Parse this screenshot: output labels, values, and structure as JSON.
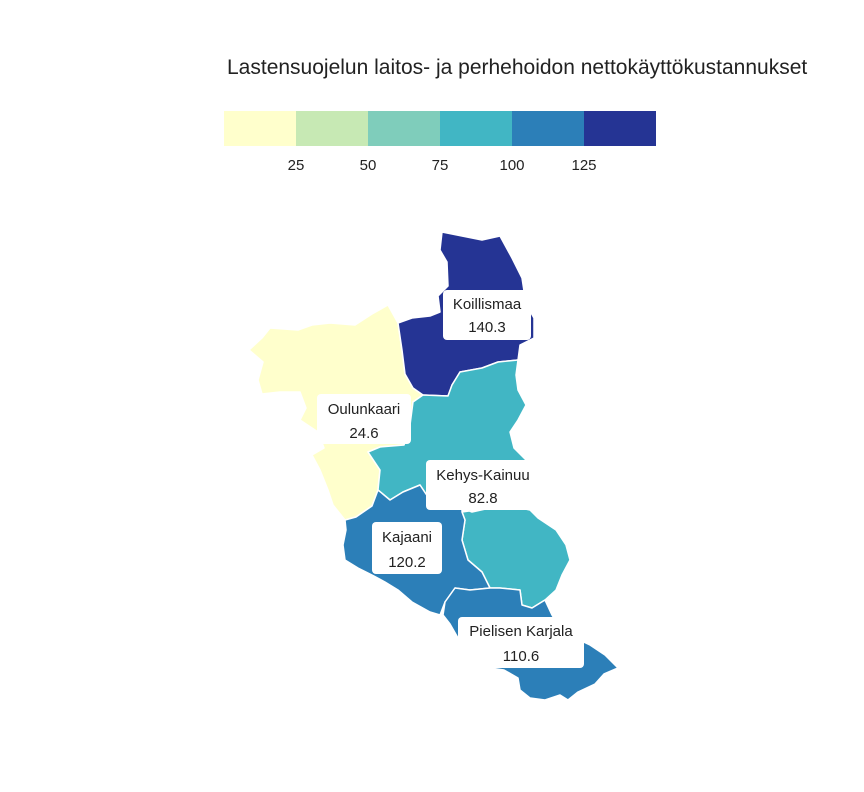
{
  "title": "Lastensuojelun laitos- ja perhehoidon nettokäyttökustannukset",
  "legend": {
    "ticks": [
      "25",
      "50",
      "75",
      "100",
      "125"
    ],
    "colors": [
      "#ffffcc",
      "#c7e9b4",
      "#7fcdbb",
      "#41b6c4",
      "#2c7fb8",
      "#253494"
    ]
  },
  "regions": [
    {
      "name": "Koillismaa",
      "value": "140.3",
      "color": "#253494"
    },
    {
      "name": "Oulunkaari",
      "value": "24.6",
      "color": "#ffffcc"
    },
    {
      "name": "Kehys-Kainuu",
      "value": "82.8",
      "color": "#41b6c4"
    },
    {
      "name": "Kajaani",
      "value": "120.2",
      "color": "#2c7fb8"
    },
    {
      "name": "Pielisen Karjala",
      "value": "110.6",
      "color": "#2c7fb8"
    }
  ]
}
